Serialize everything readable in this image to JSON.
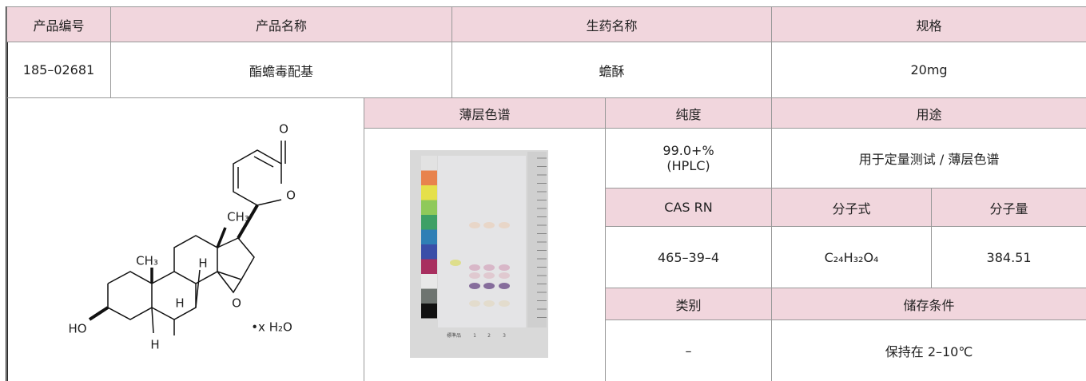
{
  "table": {
    "header": [
      "产品编号",
      "产品名称",
      "生药名称",
      "规格"
    ],
    "row": [
      "185–02681",
      "酯蟾毒配基",
      "蟾酥",
      "20mg"
    ]
  },
  "details": {
    "tlc_header": "薄层色谱",
    "purity_header": "纯度",
    "purity": [
      "99.0+%",
      "(HPLC)"
    ],
    "use_header": "用途",
    "use": "用于定量测试 / 薄层色谱",
    "cas_header": "CAS RN",
    "cas": "465–39–4",
    "formula_header": "分子式",
    "formula": "C₂₄H₃₂O₄",
    "mw_header": "分子量",
    "mw": "384.51",
    "category_header": "类别",
    "category": "–",
    "storage_header": "储存条件",
    "storage": "保持在 2–10℃"
  },
  "structure": {
    "labels": [
      "O",
      "O",
      "CH₃",
      "CH₃",
      "H",
      "H",
      "O",
      "HO",
      "H",
      "•x H₂O"
    ]
  },
  "tlc_lanes": [
    "標準品",
    "1",
    "2",
    "3"
  ]
}
